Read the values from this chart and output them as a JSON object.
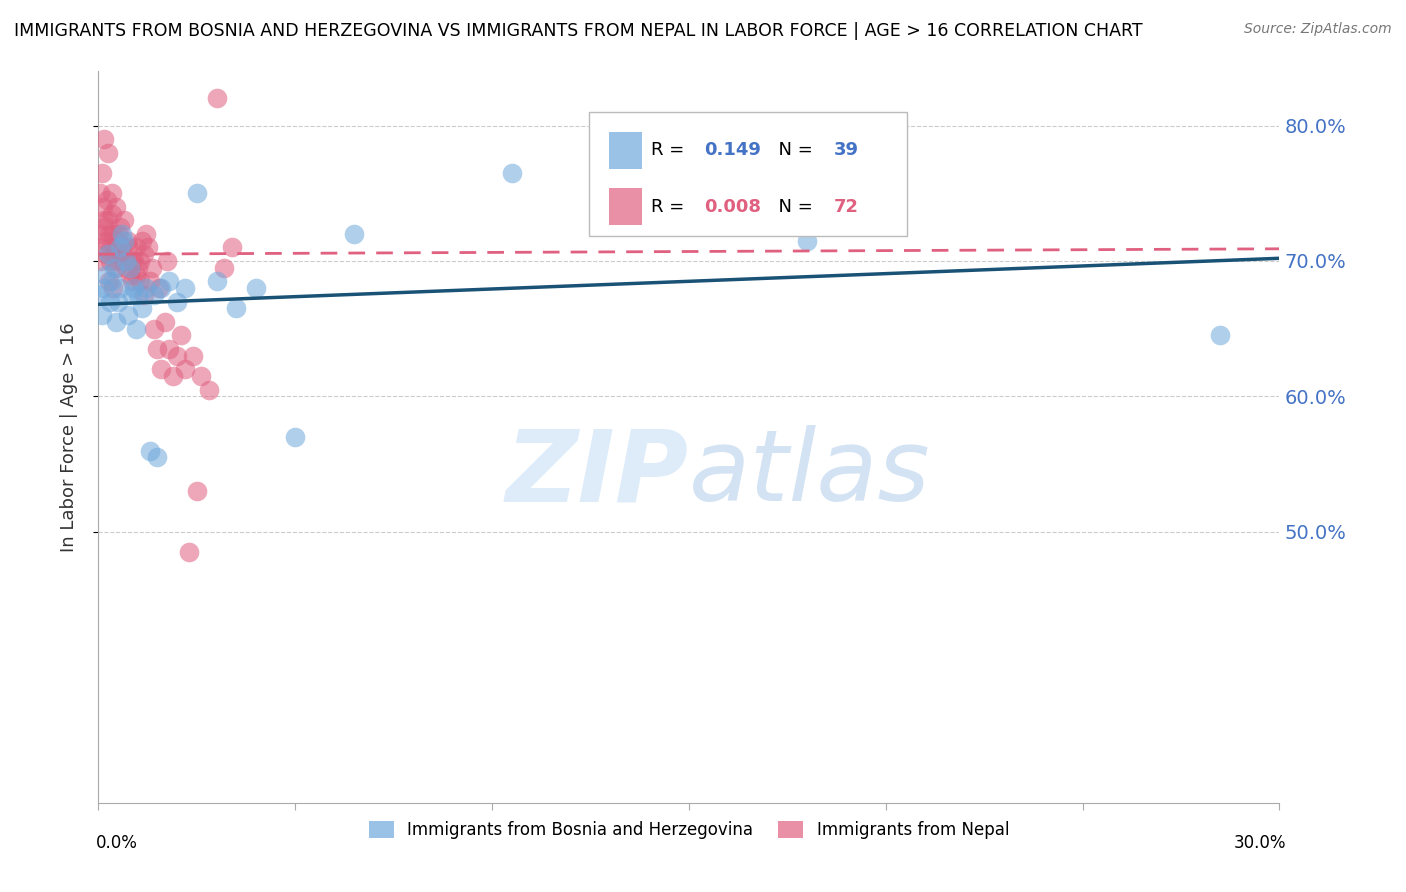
{
  "title": "IMMIGRANTS FROM BOSNIA AND HERZEGOVINA VS IMMIGRANTS FROM NEPAL IN LABOR FORCE | AGE > 16 CORRELATION CHART",
  "source": "Source: ZipAtlas.com",
  "ylabel": "In Labor Force | Age > 16",
  "xlim": [
    0.0,
    30.0
  ],
  "ylim": [
    30.0,
    84.0
  ],
  "bosnia_color": "#6fa8dc",
  "nepal_color": "#e06080",
  "bosnia_R": 0.149,
  "bosnia_N": 39,
  "nepal_R": 0.008,
  "nepal_N": 72,
  "bosnia_label": "Immigrants from Bosnia and Herzegovina",
  "nepal_label": "Immigrants from Nepal",
  "watermark_zip": "ZIP",
  "watermark_atlas": "atlas",
  "right_yticks": [
    50.0,
    60.0,
    70.0,
    80.0
  ],
  "bosnia_scatter_x": [
    0.05,
    0.1,
    0.15,
    0.2,
    0.25,
    0.3,
    0.35,
    0.4,
    0.5,
    0.55,
    0.6,
    0.65,
    0.7,
    0.8,
    0.9,
    1.0,
    1.1,
    1.2,
    1.4,
    1.6,
    1.8,
    2.0,
    2.2,
    2.5,
    3.0,
    3.5,
    4.0,
    5.0,
    6.5,
    10.5,
    18.0,
    28.5,
    0.45,
    0.55,
    0.75,
    0.85,
    0.95,
    1.3,
    1.5
  ],
  "bosnia_scatter_y": [
    67.5,
    66.0,
    68.0,
    69.0,
    70.5,
    67.0,
    68.5,
    69.5,
    67.0,
    71.0,
    72.0,
    71.5,
    70.0,
    69.5,
    68.0,
    67.5,
    66.5,
    68.0,
    67.5,
    68.0,
    68.5,
    67.0,
    68.0,
    75.0,
    68.5,
    66.5,
    68.0,
    57.0,
    72.0,
    76.5,
    71.5,
    64.5,
    65.5,
    68.0,
    66.0,
    67.5,
    65.0,
    56.0,
    55.5
  ],
  "nepal_scatter_x": [
    0.02,
    0.04,
    0.06,
    0.08,
    0.1,
    0.12,
    0.14,
    0.16,
    0.18,
    0.2,
    0.22,
    0.24,
    0.26,
    0.28,
    0.3,
    0.32,
    0.34,
    0.36,
    0.38,
    0.4,
    0.42,
    0.44,
    0.46,
    0.48,
    0.5,
    0.55,
    0.6,
    0.65,
    0.7,
    0.75,
    0.8,
    0.85,
    0.9,
    0.95,
    1.0,
    1.05,
    1.1,
    1.15,
    1.2,
    1.3,
    1.4,
    1.5,
    1.6,
    1.7,
    1.8,
    1.9,
    2.0,
    2.1,
    2.2,
    2.4,
    2.6,
    2.8,
    3.0,
    3.2,
    3.4,
    0.15,
    0.25,
    0.35,
    0.45,
    0.55,
    0.65,
    0.75,
    0.85,
    0.95,
    1.05,
    1.15,
    1.25,
    1.35,
    1.55,
    1.75,
    2.3,
    2.5
  ],
  "nepal_scatter_y": [
    72.0,
    75.0,
    70.0,
    76.5,
    71.0,
    74.0,
    73.0,
    72.5,
    70.5,
    71.5,
    74.5,
    73.0,
    72.0,
    68.5,
    70.0,
    71.0,
    73.5,
    72.0,
    68.0,
    71.0,
    70.5,
    69.5,
    71.5,
    70.0,
    72.0,
    70.5,
    71.0,
    70.0,
    69.5,
    71.0,
    69.0,
    68.5,
    70.0,
    71.0,
    69.5,
    70.0,
    71.5,
    70.5,
    72.0,
    68.5,
    65.0,
    63.5,
    62.0,
    65.5,
    63.5,
    61.5,
    63.0,
    64.5,
    62.0,
    63.0,
    61.5,
    60.5,
    82.0,
    69.5,
    71.0,
    79.0,
    78.0,
    75.0,
    74.0,
    72.5,
    73.0,
    71.5,
    70.0,
    69.0,
    68.5,
    67.5,
    71.0,
    69.5,
    68.0,
    70.0,
    48.5,
    53.0
  ]
}
